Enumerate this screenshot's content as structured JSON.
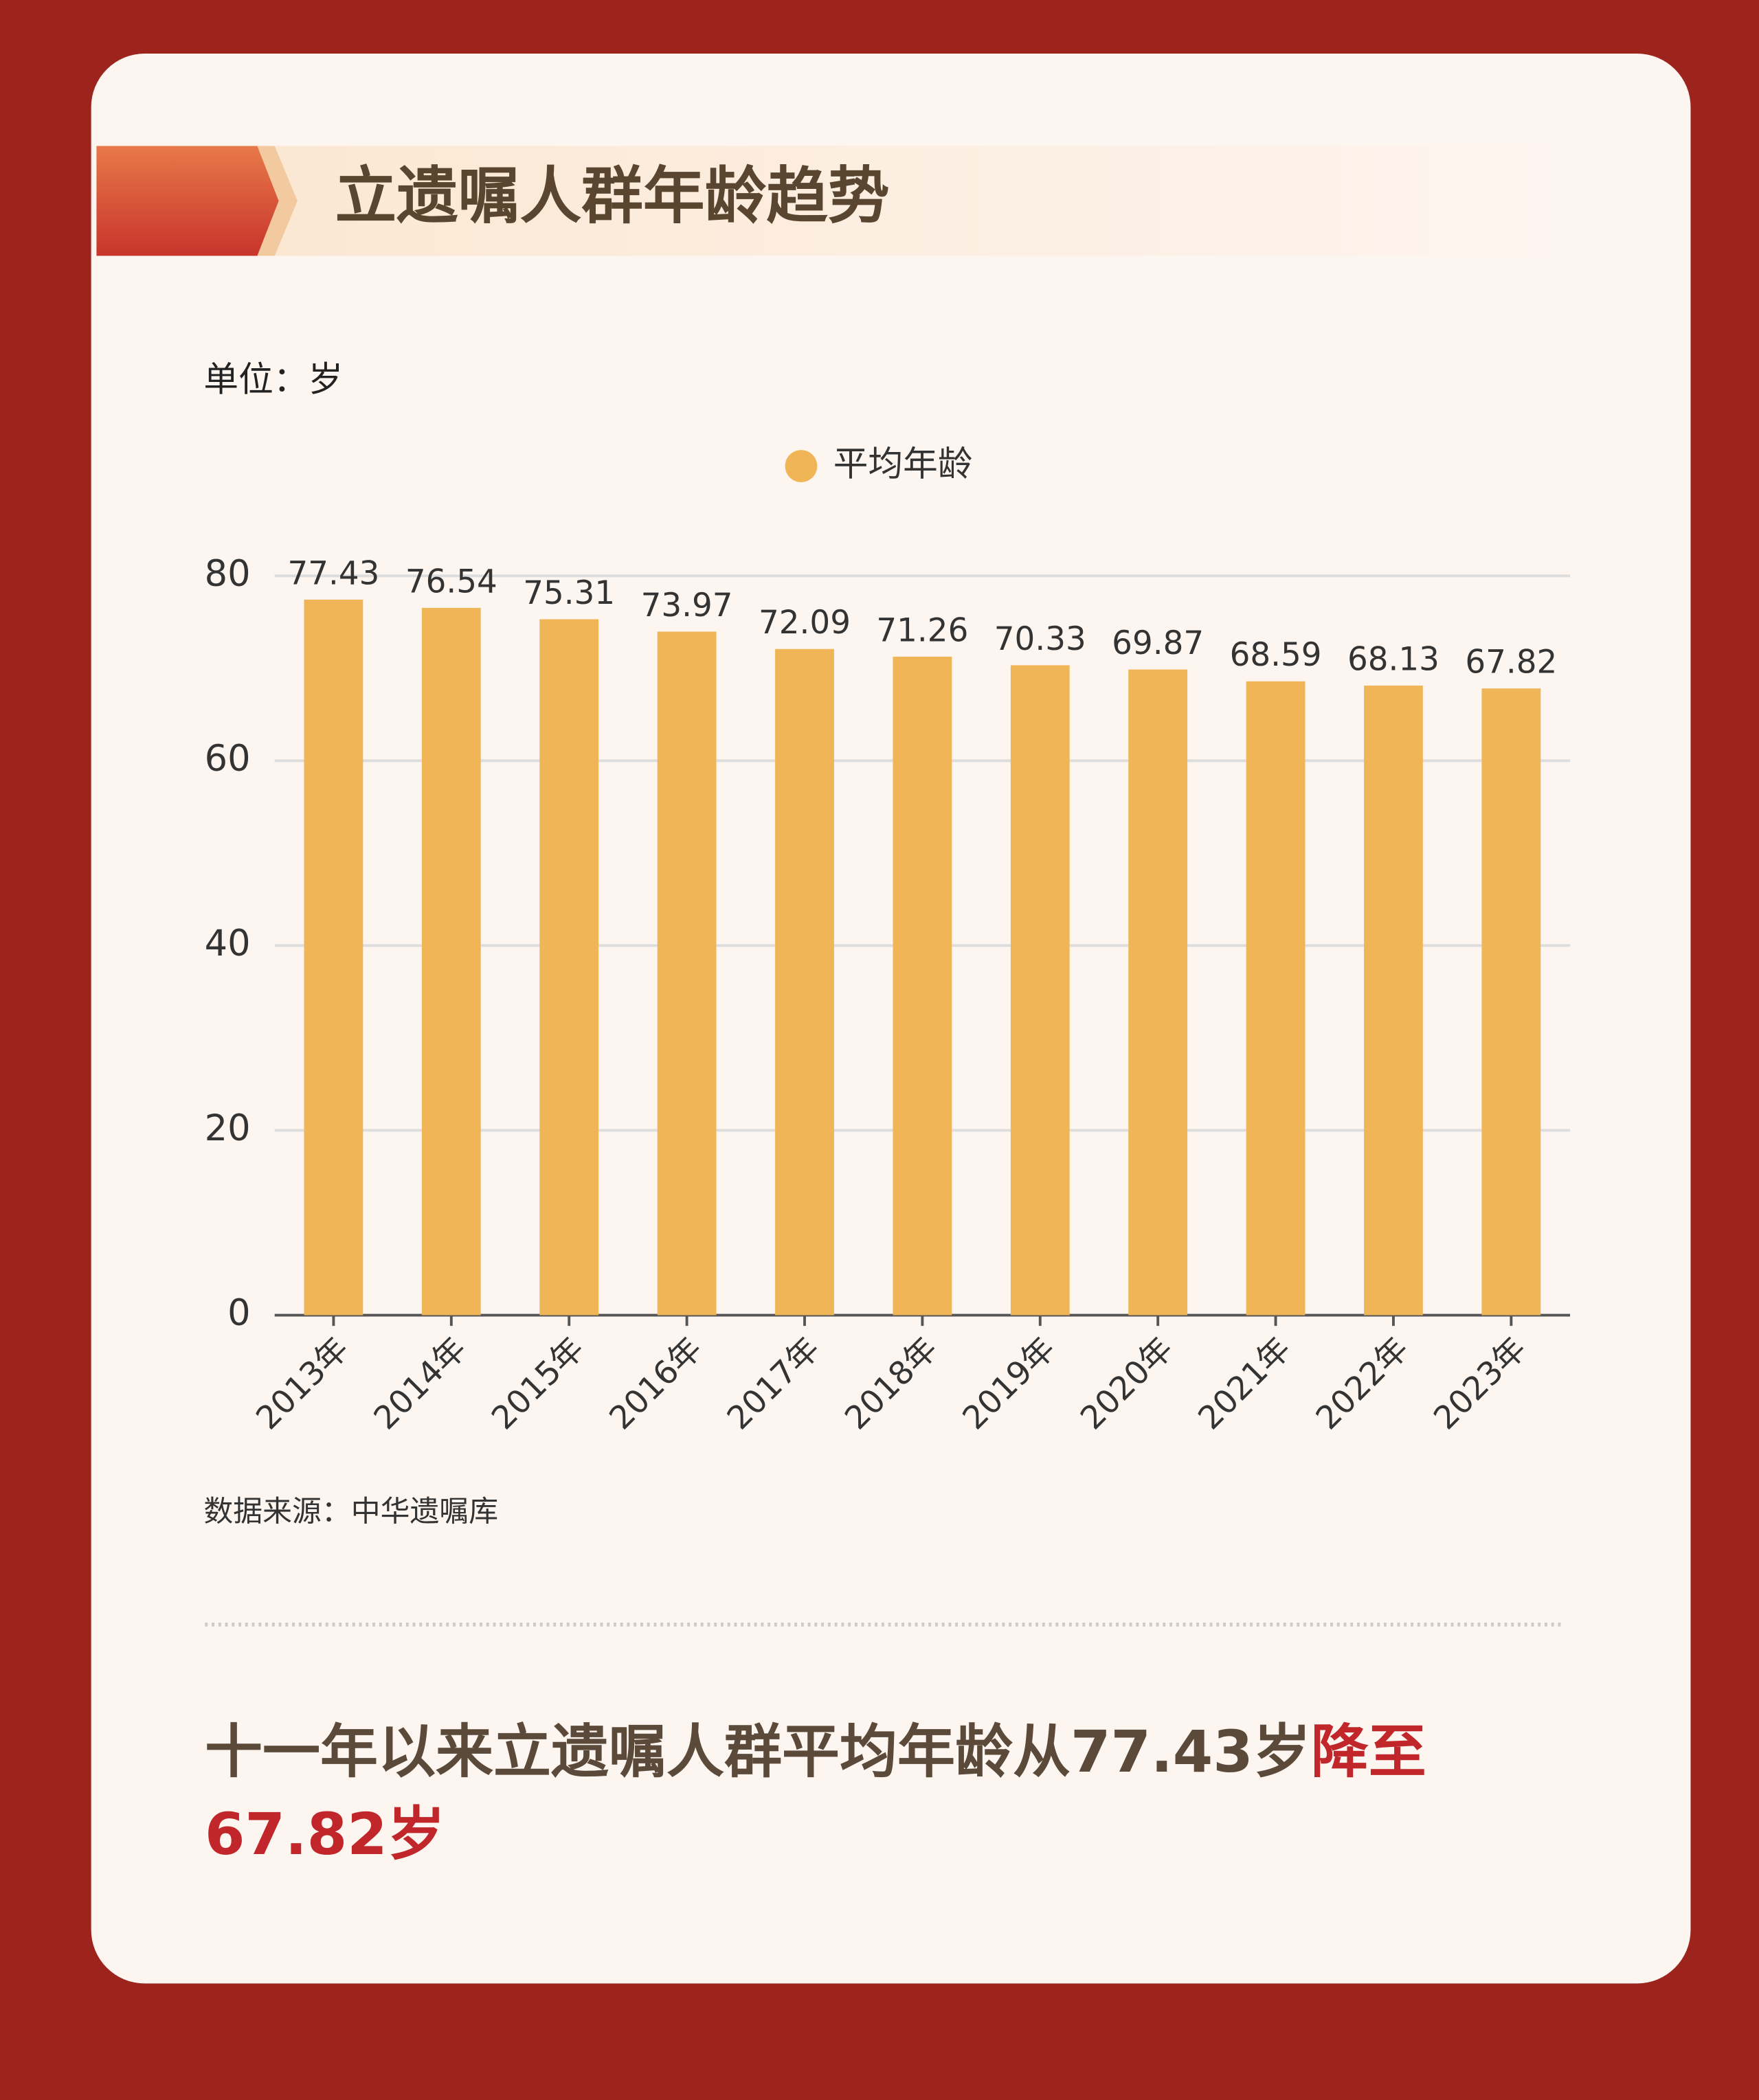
{
  "chart_data": {
    "type": "bar",
    "title": "立遗嘱人群年龄趋势",
    "unit_label": "单位：岁",
    "categories": [
      "2013年",
      "2014年",
      "2015年",
      "2016年",
      "2017年",
      "2018年",
      "2019年",
      "2020年",
      "2021年",
      "2022年",
      "2023年"
    ],
    "series": [
      {
        "name": "平均年龄",
        "color": "#f0b557",
        "values": [
          77.43,
          76.54,
          75.31,
          73.97,
          72.09,
          71.26,
          70.33,
          69.87,
          68.59,
          68.13,
          67.82
        ]
      }
    ],
    "ylim": [
      0,
      80
    ],
    "yticks": [
      0,
      20,
      40,
      60,
      80
    ],
    "grid": true,
    "legend": "top",
    "source": "数据来源：中华遗嘱库",
    "conclusion": {
      "text": "十一年以来立遗嘱人群平均年龄从77.43岁",
      "highlight": "降至67.82岁"
    }
  }
}
